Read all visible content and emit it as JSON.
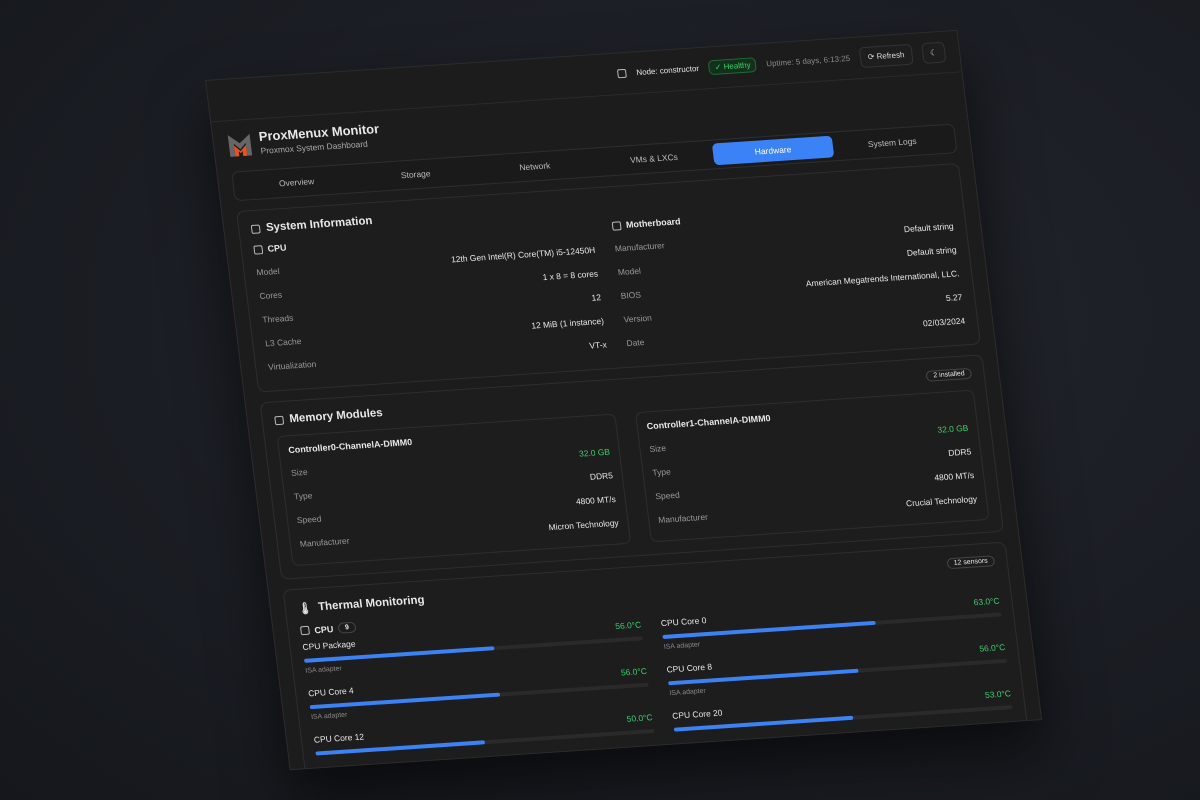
{
  "topbar": {
    "node": "Node: constructor",
    "status": "Healthy",
    "uptime": "Uptime: 5 days, 6:13:25",
    "refresh": "Refresh"
  },
  "header": {
    "title": "ProxMenux Monitor",
    "subtitle": "Proxmox System Dashboard"
  },
  "tabs": [
    "Overview",
    "Storage",
    "Network",
    "VMs & LXCs",
    "Hardware",
    "System Logs"
  ],
  "active_tab": "Hardware",
  "system": {
    "title": "System Information",
    "cpu": {
      "title": "CPU",
      "rows": [
        [
          "Model",
          "12th Gen Intel(R) Core(TM) i5-12450H"
        ],
        [
          "Cores",
          "1 x 8 = 8 cores"
        ],
        [
          "Threads",
          "12"
        ],
        [
          "L3 Cache",
          "12 MiB (1 instance)"
        ],
        [
          "Virtualization",
          "VT-x"
        ]
      ]
    },
    "motherboard": {
      "title": "Motherboard",
      "rows": [
        [
          "Manufacturer",
          "Default string"
        ],
        [
          "Model",
          "Default string"
        ],
        [
          "BIOS",
          "American Megatrends International, LLC."
        ],
        [
          "Version",
          "5.27"
        ],
        [
          "Date",
          "02/03/2024"
        ]
      ]
    }
  },
  "memory": {
    "title": "Memory Modules",
    "badge": "2 installed",
    "modules": [
      {
        "name": "Controller0-ChannelA-DIMM0",
        "rows": [
          [
            "Size",
            "32.0 GB"
          ],
          [
            "Type",
            "DDR5"
          ],
          [
            "Speed",
            "4800 MT/s"
          ],
          [
            "Manufacturer",
            "Micron Technology"
          ]
        ]
      },
      {
        "name": "Controller1-ChannelA-DIMM0",
        "rows": [
          [
            "Size",
            "32.0 GB"
          ],
          [
            "Type",
            "DDR5"
          ],
          [
            "Speed",
            "4800 MT/s"
          ],
          [
            "Manufacturer",
            "Crucial Technology"
          ]
        ]
      }
    ]
  },
  "thermal": {
    "title": "Thermal Monitoring",
    "badge": "12 sensors",
    "group": "CPU",
    "group_count": "9",
    "sensors": [
      {
        "name": "CPU Package",
        "temp": "56.0°C",
        "adapter": "ISA adapter",
        "level": 0.56
      },
      {
        "name": "CPU Core 0",
        "temp": "63.0°C",
        "adapter": "ISA adapter",
        "level": 0.63
      },
      {
        "name": "CPU Core 4",
        "temp": "56.0°C",
        "adapter": "ISA adapter",
        "level": 0.56
      },
      {
        "name": "CPU Core 8",
        "temp": "56.0°C",
        "adapter": "ISA adapter",
        "level": 0.56
      },
      {
        "name": "CPU Core 12",
        "temp": "50.0°C",
        "adapter": "",
        "level": 0.5
      },
      {
        "name": "CPU Core 20",
        "temp": "53.0°C",
        "adapter": "",
        "level": 0.53
      }
    ]
  },
  "colors": {
    "accent": "#3b82f6",
    "healthy": "#3fcf6a",
    "logo": "#e8521c"
  }
}
